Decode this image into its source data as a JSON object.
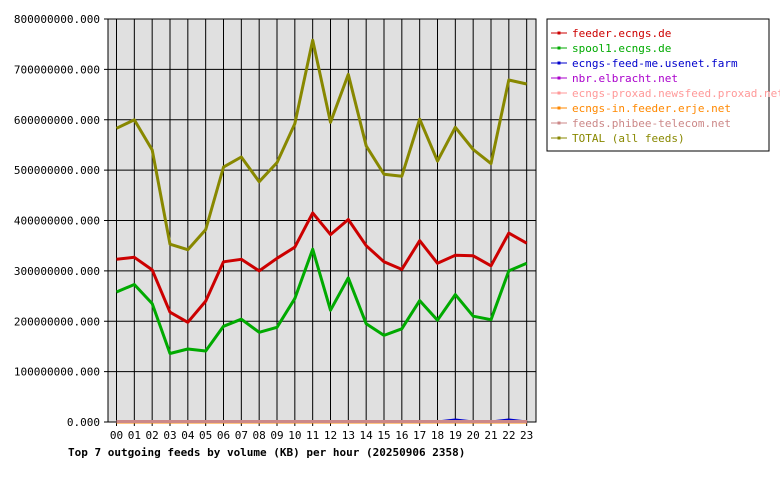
{
  "chart_data": {
    "type": "line",
    "title": "Top 7 outgoing feeds by volume (KB) per hour (20250906 2358)",
    "x": [
      "00",
      "01",
      "02",
      "03",
      "04",
      "05",
      "06",
      "07",
      "08",
      "09",
      "10",
      "11",
      "12",
      "13",
      "14",
      "15",
      "16",
      "17",
      "18",
      "19",
      "20",
      "21",
      "22",
      "23"
    ],
    "ylim": [
      0,
      800000000
    ],
    "yticks": [
      0,
      100000000,
      200000000,
      300000000,
      400000000,
      500000000,
      600000000,
      700000000,
      800000000
    ],
    "ytick_labels": [
      "0.000",
      "100000000.000",
      "200000000.000",
      "300000000.000",
      "400000000.000",
      "500000000.000",
      "600000000.000",
      "700000000.000",
      "800000000.000"
    ],
    "grid": true,
    "legend_position": "right",
    "colors": {
      "plot_background": "#e0e0e0",
      "grid": "#000000"
    },
    "series": [
      {
        "name": "feeder.ecngs.de",
        "color": "#cc0000",
        "values": [
          323000000,
          327000000,
          302000000,
          218000000,
          198000000,
          240000000,
          318000000,
          323000000,
          300000000,
          325000000,
          347000000,
          415000000,
          372000000,
          402000000,
          350000000,
          318000000,
          303000000,
          360000000,
          315000000,
          331000000,
          330000000,
          310000000,
          375000000,
          355000000
        ]
      },
      {
        "name": "spool1.ecngs.de",
        "color": "#00aa00",
        "values": [
          258000000,
          273000000,
          235000000,
          136000000,
          145000000,
          141000000,
          190000000,
          204000000,
          178000000,
          188000000,
          245000000,
          343000000,
          222000000,
          286000000,
          195000000,
          172000000,
          185000000,
          241000000,
          202000000,
          253000000,
          210000000,
          203000000,
          300000000,
          315000000
        ]
      },
      {
        "name": "ecngs-feed-me.usenet.farm",
        "color": "#0000cc",
        "values": [
          0,
          0,
          0,
          0,
          0,
          0,
          0,
          0,
          0,
          0,
          0,
          0,
          0,
          0,
          0,
          0,
          0,
          0,
          0,
          4000000,
          0,
          0,
          4000000,
          0
        ]
      },
      {
        "name": "nbr.elbracht.net",
        "color": "#aa00cc",
        "values": [
          0,
          0,
          0,
          0,
          0,
          0,
          0,
          0,
          0,
          0,
          0,
          0,
          0,
          0,
          0,
          0,
          0,
          0,
          0,
          0,
          0,
          0,
          0,
          0
        ]
      },
      {
        "name": "ecngs-proxad.newsfeed.proxad.net",
        "color": "#ff9999",
        "values": [
          1000000,
          1000000,
          1000000,
          1000000,
          1000000,
          1000000,
          1000000,
          1000000,
          1000000,
          1000000,
          1000000,
          1000000,
          1000000,
          1000000,
          1000000,
          1000000,
          1000000,
          1000000,
          1000000,
          1000000,
          1000000,
          1000000,
          1000000,
          1000000
        ]
      },
      {
        "name": "ecngs-in.feeder.erje.net",
        "color": "#ff8800",
        "values": [
          0,
          0,
          0,
          0,
          0,
          0,
          0,
          0,
          0,
          0,
          0,
          0,
          0,
          0,
          0,
          0,
          0,
          0,
          0,
          0,
          0,
          0,
          0,
          0
        ]
      },
      {
        "name": "feeds.phibee-telecom.net",
        "color": "#cc8888",
        "values": [
          1000000,
          1000000,
          1000000,
          1000000,
          1000000,
          1000000,
          1000000,
          1000000,
          1000000,
          1000000,
          1000000,
          1000000,
          1000000,
          1000000,
          1000000,
          1000000,
          1000000,
          1000000,
          1000000,
          1000000,
          1000000,
          1000000,
          1000000,
          1000000
        ]
      },
      {
        "name": "TOTAL (all feeds)",
        "color": "#888800",
        "values": [
          583000000,
          600000000,
          540000000,
          353000000,
          342000000,
          382000000,
          506000000,
          526000000,
          477000000,
          515000000,
          592000000,
          758000000,
          595000000,
          690000000,
          548000000,
          492000000,
          488000000,
          601000000,
          518000000,
          585000000,
          541000000,
          513000000,
          679000000,
          671000000
        ]
      }
    ]
  }
}
